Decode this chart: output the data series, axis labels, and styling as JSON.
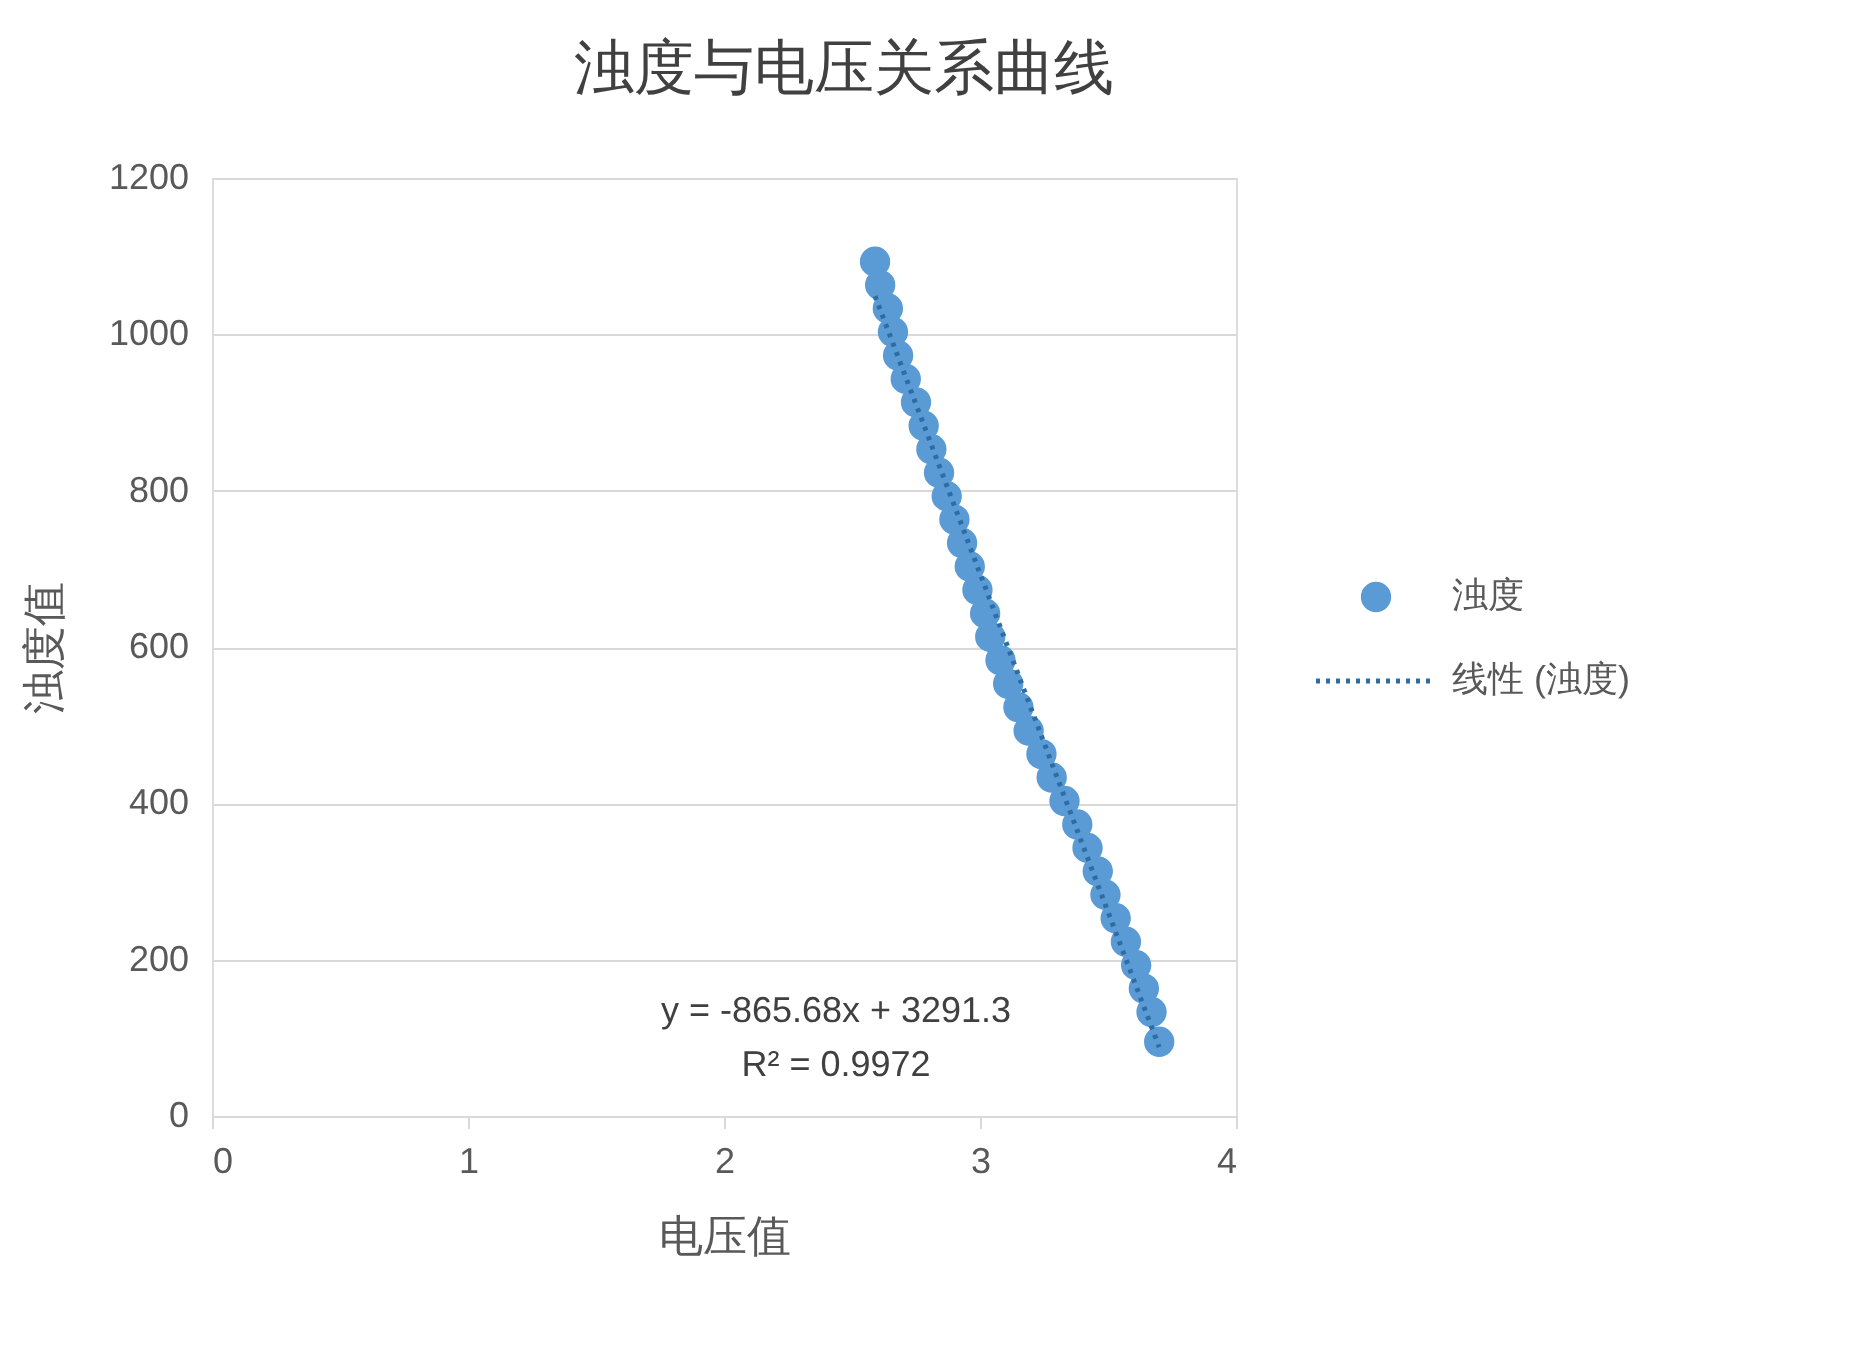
{
  "chart_data": {
    "type": "scatter",
    "title": "浊度与电压关系曲线",
    "xlabel": "电压值",
    "ylabel": "浊度值",
    "xlim": [
      0,
      4
    ],
    "xticks": [
      0,
      1,
      2,
      3,
      4
    ],
    "ylim": [
      0,
      1200
    ],
    "yticks": [
      0,
      200,
      400,
      600,
      800,
      1000,
      1200
    ],
    "grid": "y",
    "legend": "right",
    "annotations": [
      "y = -865.68x + 3291.3",
      "R² = 0.9972"
    ],
    "series": [
      {
        "name": "浊度",
        "marker": "circle",
        "color": "#5b9bd5",
        "x": [
          2.59,
          2.61,
          2.64,
          2.66,
          2.68,
          2.71,
          2.75,
          2.78,
          2.81,
          2.84,
          2.87,
          2.9,
          2.93,
          2.96,
          2.99,
          3.02,
          3.04,
          3.08,
          3.11,
          3.15,
          3.19,
          3.24,
          3.28,
          3.33,
          3.38,
          3.42,
          3.46,
          3.49,
          3.53,
          3.57,
          3.61,
          3.64,
          3.67,
          3.7
        ],
        "values": [
          1093,
          1063,
          1033,
          1003,
          973,
          943,
          913,
          883,
          853,
          823,
          793,
          763,
          733,
          703,
          673,
          643,
          613,
          583,
          553,
          523,
          493,
          463,
          433,
          403,
          373,
          343,
          313,
          283,
          253,
          223,
          193,
          163,
          133,
          95
        ]
      },
      {
        "name": "线性 (浊度)",
        "type": "line",
        "marker": "none",
        "line_style": "dotted",
        "color": "#2e6da4",
        "x": [
          2.59,
          3.7
        ],
        "values": [
          1049,
          88
        ]
      }
    ]
  }
}
